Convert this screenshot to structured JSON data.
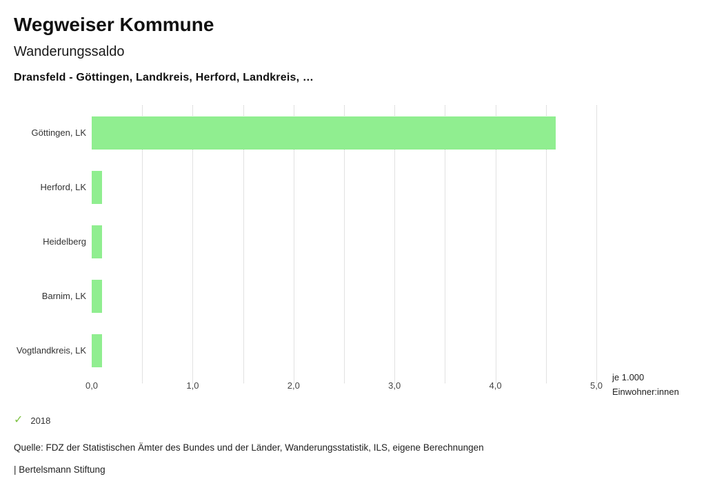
{
  "header": {
    "title": "Wegweiser Kommune",
    "subtitle": "Wanderungssaldo",
    "selection": "Dransfeld - Göttingen, Landkreis, Herford, Landkreis, …"
  },
  "chart_data": {
    "type": "bar",
    "orientation": "horizontal",
    "title": "Wanderungssaldo",
    "series_name": "2018",
    "categories": [
      "Göttingen, LK",
      "Herford, LK",
      "Heidelberg",
      "Barnim, LK",
      "Vogtlandkreis, LK"
    ],
    "values": [
      4.6,
      0.1,
      0.1,
      0.1,
      0.1
    ],
    "xlim": [
      0,
      5
    ],
    "grid_step": 0.5,
    "grid": true,
    "bar_color": "#90ee90",
    "x_ticks": [
      {
        "value": 0,
        "label": "0,0"
      },
      {
        "value": 1,
        "label": "1,0"
      },
      {
        "value": 2,
        "label": "2,0"
      },
      {
        "value": 3,
        "label": "3,0"
      },
      {
        "value": 4,
        "label": "4,0"
      },
      {
        "value": 5,
        "label": "5,0"
      }
    ],
    "x_unit": [
      "je 1.000",
      "Einwohner:innen"
    ]
  },
  "legend": {
    "items": [
      {
        "label": "2018",
        "checked": true,
        "check_glyph": "✓",
        "check_color": "#7dc242"
      }
    ]
  },
  "footer": {
    "source": "Quelle: FDZ der Statistischen Ämter des Bundes und der Länder, Wanderungsstatistik, ILS, eigene Berechnungen",
    "brand": "| Bertelsmann Stiftung"
  }
}
